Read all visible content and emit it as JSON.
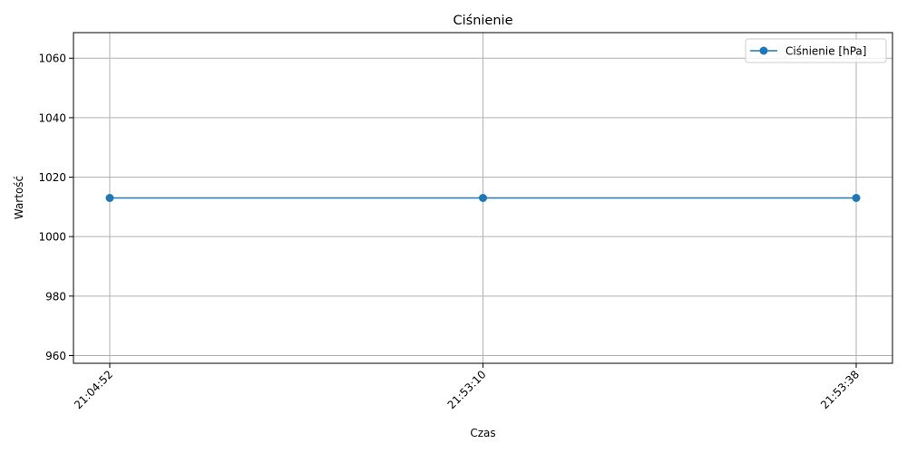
{
  "chart_data": {
    "type": "line",
    "title": "Ciśnienie",
    "xlabel": "Czas",
    "ylabel": "Wartość",
    "categories": [
      "21:04:52",
      "21:53:10",
      "21:53:38"
    ],
    "series": [
      {
        "name": "Ciśnienie [hPa]",
        "values": [
          1013,
          1013,
          1013
        ],
        "color": "#1f77b4",
        "marker": "circle"
      }
    ],
    "ylim": [
      957.4,
      1068.6
    ],
    "yticks": [
      960,
      980,
      1000,
      1020,
      1040,
      1060
    ],
    "grid": true,
    "legend_position": "top-right"
  }
}
